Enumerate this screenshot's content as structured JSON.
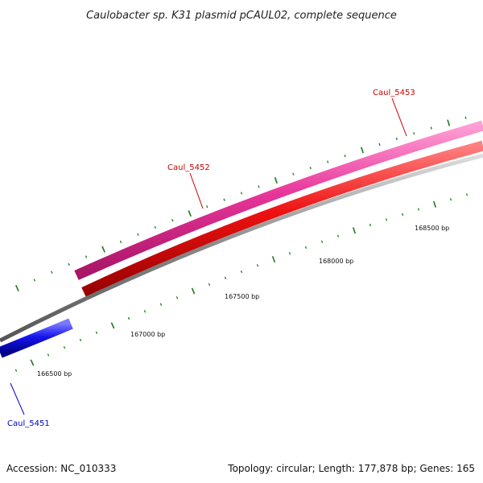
{
  "title": "Caulobacter sp. K31 plasmid pCAUL02, complete sequence",
  "footer": {
    "accession": "Accession: NC_010333",
    "summary": "Topology: circular; Length: 177,878 bp; Genes: 165"
  },
  "genes": [
    {
      "name": "Caul_5451",
      "color": "#0000cc"
    },
    {
      "name": "Caul_5452",
      "color": "#cc0000"
    },
    {
      "name": "Caul_5453",
      "color": "#cc0000"
    }
  ],
  "scale_labels": [
    "166500 bp",
    "167000 bp",
    "167500 bp",
    "168000 bp",
    "168500 bp"
  ],
  "colors": {
    "feature_pink": "#e8369a",
    "feature_red": "#ee1111",
    "feature_blue": "#1515ee",
    "backbone": "#888888",
    "tick": "#1f7a1f"
  }
}
